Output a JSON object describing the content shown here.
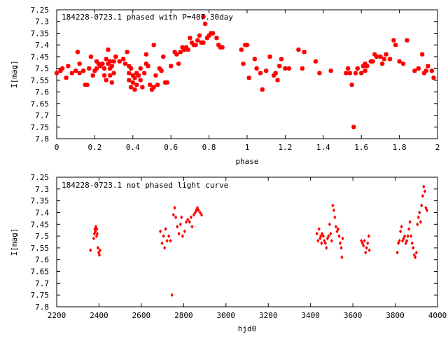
{
  "chart_data": [
    {
      "type": "scatter",
      "title": "184228-0723.1 phased with P=407.30day",
      "xlabel": "phase",
      "ylabel": "I[mag]",
      "xlim": [
        0,
        2
      ],
      "ylim": [
        7.8,
        7.25
      ],
      "y_inverted": true,
      "grid": false,
      "marker_color": "#ff0000",
      "marker": "star",
      "x_ticks": [
        "0",
        "0.2",
        "0.4",
        "0.6",
        "0.8",
        "1",
        "1.2",
        "1.4",
        "1.6",
        "1.8",
        "2"
      ],
      "y_ticks": [
        "7.25",
        "7.3",
        "7.35",
        "7.4",
        "7.45",
        "7.5",
        "7.55",
        "7.6",
        "7.65",
        "7.7",
        "7.75",
        "7.8"
      ],
      "points": [
        [
          0.0,
          7.52
        ],
        [
          0.02,
          7.51
        ],
        [
          0.03,
          7.5
        ],
        [
          0.05,
          7.54
        ],
        [
          0.06,
          7.49
        ],
        [
          0.08,
          7.52
        ],
        [
          0.1,
          7.51
        ],
        [
          0.11,
          7.43
        ],
        [
          0.12,
          7.48
        ],
        [
          0.12,
          7.52
        ],
        [
          0.14,
          7.51
        ],
        [
          0.15,
          7.57
        ],
        [
          0.16,
          7.57
        ],
        [
          0.17,
          7.5
        ],
        [
          0.18,
          7.45
        ],
        [
          0.19,
          7.53
        ],
        [
          0.2,
          7.51
        ],
        [
          0.21,
          7.5
        ],
        [
          0.21,
          7.47
        ],
        [
          0.22,
          7.48
        ],
        [
          0.23,
          7.49
        ],
        [
          0.24,
          7.48
        ],
        [
          0.25,
          7.5
        ],
        [
          0.25,
          7.53
        ],
        [
          0.26,
          7.55
        ],
        [
          0.26,
          7.46
        ],
        [
          0.27,
          7.42
        ],
        [
          0.27,
          7.48
        ],
        [
          0.28,
          7.5
        ],
        [
          0.28,
          7.47
        ],
        [
          0.28,
          7.53
        ],
        [
          0.29,
          7.56
        ],
        [
          0.29,
          7.49
        ],
        [
          0.3,
          7.47
        ],
        [
          0.3,
          7.52
        ],
        [
          0.31,
          7.45
        ],
        [
          0.33,
          7.47
        ],
        [
          0.35,
          7.46
        ],
        [
          0.36,
          7.48
        ],
        [
          0.37,
          7.43
        ],
        [
          0.38,
          7.49
        ],
        [
          0.38,
          7.52
        ],
        [
          0.38,
          7.55
        ],
        [
          0.39,
          7.58
        ],
        [
          0.39,
          7.5
        ],
        [
          0.4,
          7.53
        ],
        [
          0.4,
          7.56
        ],
        [
          0.41,
          7.59
        ],
        [
          0.41,
          7.54
        ],
        [
          0.42,
          7.52
        ],
        [
          0.42,
          7.57
        ],
        [
          0.43,
          7.53
        ],
        [
          0.44,
          7.55
        ],
        [
          0.44,
          7.5
        ],
        [
          0.45,
          7.58
        ],
        [
          0.46,
          7.52
        ],
        [
          0.47,
          7.44
        ],
        [
          0.47,
          7.48
        ],
        [
          0.48,
          7.49
        ],
        [
          0.49,
          7.57
        ],
        [
          0.5,
          7.59
        ],
        [
          0.51,
          7.58
        ],
        [
          0.51,
          7.4
        ],
        [
          0.52,
          7.53
        ],
        [
          0.53,
          7.57
        ],
        [
          0.54,
          7.5
        ],
        [
          0.55,
          7.51
        ],
        [
          0.56,
          7.45
        ],
        [
          0.57,
          7.56
        ],
        [
          0.58,
          7.56
        ],
        [
          0.6,
          7.49
        ],
        [
          0.62,
          7.43
        ],
        [
          0.63,
          7.44
        ],
        [
          0.64,
          7.48
        ],
        [
          0.65,
          7.43
        ],
        [
          0.66,
          7.41
        ],
        [
          0.67,
          7.42
        ],
        [
          0.68,
          7.41
        ],
        [
          0.69,
          7.42
        ],
        [
          0.7,
          7.37
        ],
        [
          0.71,
          7.39
        ],
        [
          0.72,
          7.4
        ],
        [
          0.73,
          7.4
        ],
        [
          0.74,
          7.38
        ],
        [
          0.75,
          7.36
        ],
        [
          0.76,
          7.39
        ],
        [
          0.77,
          7.28
        ],
        [
          0.77,
          7.39
        ],
        [
          0.78,
          7.31
        ],
        [
          0.79,
          7.37
        ],
        [
          0.8,
          7.36
        ],
        [
          0.81,
          7.35
        ],
        [
          0.82,
          7.35
        ],
        [
          0.84,
          7.37
        ],
        [
          0.85,
          7.4
        ],
        [
          0.86,
          7.41
        ],
        [
          0.87,
          7.41
        ],
        [
          0.97,
          7.42
        ],
        [
          0.98,
          7.48
        ],
        [
          0.99,
          7.4
        ],
        [
          1.0,
          7.4
        ],
        [
          1.01,
          7.54
        ],
        [
          1.04,
          7.46
        ],
        [
          1.05,
          7.5
        ],
        [
          1.07,
          7.52
        ],
        [
          1.08,
          7.59
        ],
        [
          1.1,
          7.51
        ],
        [
          1.12,
          7.45
        ],
        [
          1.14,
          7.53
        ],
        [
          1.15,
          7.52
        ],
        [
          1.16,
          7.55
        ],
        [
          1.17,
          7.49
        ],
        [
          1.18,
          7.46
        ],
        [
          1.2,
          7.5
        ],
        [
          1.22,
          7.5
        ],
        [
          1.27,
          7.42
        ],
        [
          1.29,
          7.5
        ],
        [
          1.3,
          7.43
        ],
        [
          1.36,
          7.47
        ],
        [
          1.38,
          7.52
        ],
        [
          1.44,
          7.51
        ],
        [
          1.52,
          7.52
        ],
        [
          1.53,
          7.5
        ],
        [
          1.54,
          7.52
        ],
        [
          1.55,
          7.57
        ],
        [
          1.56,
          7.75
        ],
        [
          1.57,
          7.52
        ],
        [
          1.58,
          7.5
        ],
        [
          1.6,
          7.52
        ],
        [
          1.61,
          7.49
        ],
        [
          1.62,
          7.51
        ],
        [
          1.62,
          7.48
        ],
        [
          1.63,
          7.49
        ],
        [
          1.65,
          7.47
        ],
        [
          1.66,
          7.47
        ],
        [
          1.67,
          7.44
        ],
        [
          1.68,
          7.45
        ],
        [
          1.7,
          7.45
        ],
        [
          1.71,
          7.48
        ],
        [
          1.72,
          7.46
        ],
        [
          1.73,
          7.44
        ],
        [
          1.75,
          7.46
        ],
        [
          1.77,
          7.38
        ],
        [
          1.78,
          7.4
        ],
        [
          1.8,
          7.47
        ],
        [
          1.82,
          7.48
        ],
        [
          1.84,
          7.38
        ],
        [
          1.88,
          7.51
        ],
        [
          1.9,
          7.5
        ],
        [
          1.92,
          7.44
        ],
        [
          1.93,
          7.52
        ],
        [
          1.94,
          7.51
        ],
        [
          1.95,
          7.49
        ],
        [
          1.97,
          7.51
        ],
        [
          1.98,
          7.54
        ]
      ]
    },
    {
      "type": "scatter",
      "title": "184228-0723.1 not phased light curve",
      "xlabel": "hjd0",
      "ylabel": "I[mag]",
      "xlim": [
        2200,
        4000
      ],
      "ylim": [
        7.8,
        7.25
      ],
      "y_inverted": true,
      "grid": false,
      "marker_color": "#ff0000",
      "marker": "diamond",
      "x_ticks": [
        "2200",
        "2400",
        "2600",
        "2800",
        "3000",
        "3200",
        "3400",
        "3600",
        "3800",
        "4000"
      ],
      "y_ticks": [
        "7.25",
        "7.3",
        "7.35",
        "7.4",
        "7.45",
        "7.5",
        "7.55",
        "7.6",
        "7.65",
        "7.7",
        "7.75",
        "7.8"
      ],
      "points": [
        [
          2360,
          7.56
        ],
        [
          2375,
          7.51
        ],
        [
          2378,
          7.49
        ],
        [
          2380,
          7.47
        ],
        [
          2383,
          7.48
        ],
        [
          2385,
          7.46
        ],
        [
          2388,
          7.5
        ],
        [
          2390,
          7.47
        ],
        [
          2392,
          7.49
        ],
        [
          2395,
          7.55
        ],
        [
          2398,
          7.57
        ],
        [
          2402,
          7.58
        ],
        [
          2405,
          7.56
        ],
        [
          2690,
          7.48
        ],
        [
          2698,
          7.53
        ],
        [
          2705,
          7.5
        ],
        [
          2710,
          7.55
        ],
        [
          2715,
          7.47
        ],
        [
          2722,
          7.52
        ],
        [
          2730,
          7.5
        ],
        [
          2738,
          7.52
        ],
        [
          2745,
          7.75
        ],
        [
          2752,
          7.41
        ],
        [
          2758,
          7.38
        ],
        [
          2763,
          7.42
        ],
        [
          2770,
          7.46
        ],
        [
          2778,
          7.49
        ],
        [
          2785,
          7.45
        ],
        [
          2790,
          7.42
        ],
        [
          2795,
          7.5
        ],
        [
          2805,
          7.48
        ],
        [
          2812,
          7.44
        ],
        [
          2820,
          7.43
        ],
        [
          2828,
          7.44
        ],
        [
          2835,
          7.42
        ],
        [
          2840,
          7.46
        ],
        [
          2848,
          7.41
        ],
        [
          2855,
          7.4
        ],
        [
          2860,
          7.39
        ],
        [
          2865,
          7.38
        ],
        [
          2870,
          7.39
        ],
        [
          2878,
          7.4
        ],
        [
          2885,
          7.41
        ],
        [
          3430,
          7.49
        ],
        [
          3435,
          7.52
        ],
        [
          3440,
          7.47
        ],
        [
          3445,
          7.51
        ],
        [
          3448,
          7.5
        ],
        [
          3452,
          7.53
        ],
        [
          3455,
          7.49
        ],
        [
          3460,
          7.5
        ],
        [
          3465,
          7.52
        ],
        [
          3470,
          7.53
        ],
        [
          3475,
          7.55
        ],
        [
          3480,
          7.51
        ],
        [
          3485,
          7.5
        ],
        [
          3490,
          7.45
        ],
        [
          3495,
          7.49
        ],
        [
          3500,
          7.52
        ],
        [
          3505,
          7.37
        ],
        [
          3510,
          7.39
        ],
        [
          3515,
          7.42
        ],
        [
          3520,
          7.46
        ],
        [
          3525,
          7.48
        ],
        [
          3530,
          7.47
        ],
        [
          3535,
          7.5
        ],
        [
          3540,
          7.53
        ],
        [
          3545,
          7.55
        ],
        [
          3548,
          7.59
        ],
        [
          3552,
          7.51
        ],
        [
          3640,
          7.52
        ],
        [
          3645,
          7.53
        ],
        [
          3650,
          7.54
        ],
        [
          3655,
          7.52
        ],
        [
          3660,
          7.57
        ],
        [
          3665,
          7.55
        ],
        [
          3670,
          7.53
        ],
        [
          3675,
          7.5
        ],
        [
          3678,
          7.56
        ],
        [
          3810,
          7.57
        ],
        [
          3815,
          7.53
        ],
        [
          3820,
          7.52
        ],
        [
          3825,
          7.48
        ],
        [
          3830,
          7.46
        ],
        [
          3835,
          7.52
        ],
        [
          3840,
          7.51
        ],
        [
          3845,
          7.5
        ],
        [
          3850,
          7.53
        ],
        [
          3855,
          7.52
        ],
        [
          3860,
          7.5
        ],
        [
          3865,
          7.47
        ],
        [
          3870,
          7.44
        ],
        [
          3875,
          7.5
        ],
        [
          3880,
          7.53
        ],
        [
          3885,
          7.55
        ],
        [
          3890,
          7.58
        ],
        [
          3895,
          7.59
        ],
        [
          3900,
          7.57
        ],
        [
          3905,
          7.45
        ],
        [
          3910,
          7.42
        ],
        [
          3915,
          7.4
        ],
        [
          3920,
          7.44
        ],
        [
          3925,
          7.37
        ],
        [
          3930,
          7.33
        ],
        [
          3935,
          7.29
        ],
        [
          3940,
          7.31
        ],
        [
          3945,
          7.38
        ],
        [
          3950,
          7.39
        ]
      ]
    }
  ]
}
